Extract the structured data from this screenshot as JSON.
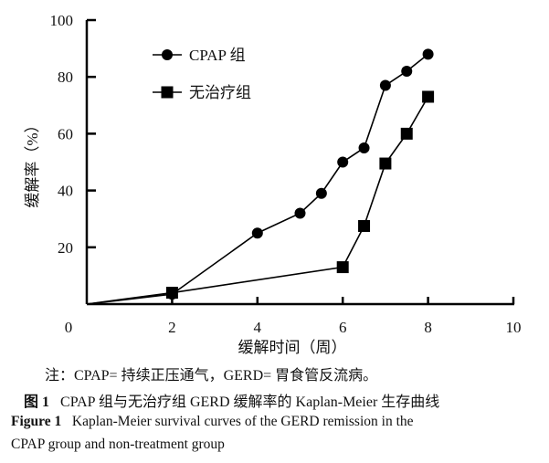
{
  "chart_data": {
    "type": "line",
    "xlabel": "缓解时间（周）",
    "ylabel": "缓解率（%）",
    "xlim": [
      0,
      10
    ],
    "ylim": [
      0,
      100
    ],
    "x_ticks": [
      "0",
      "2",
      "4",
      "6",
      "8",
      "10"
    ],
    "y_ticks": [
      "20",
      "40",
      "60",
      "80",
      "100"
    ],
    "grid": false,
    "legend_position": "top-left",
    "series": [
      {
        "name": "CPAP 组",
        "marker": "circle",
        "color": "#000000",
        "x": [
          0,
          2,
          4,
          5,
          5.5,
          6,
          6.5,
          7,
          7.5,
          8
        ],
        "y": [
          0,
          3.5,
          25,
          32,
          39,
          50,
          55,
          77,
          82,
          88
        ]
      },
      {
        "name": "无治疗组",
        "marker": "square",
        "color": "#000000",
        "x": [
          0,
          2,
          6,
          6.5,
          7,
          7.5,
          8
        ],
        "y": [
          0,
          4,
          13,
          27.5,
          49.5,
          60,
          73
        ]
      }
    ]
  },
  "caption": {
    "note": "注：CPAP= 持续正压通气，GERD= 胃食管反流病。",
    "fig_label_cn": "图 1",
    "title_cn": "CPAP 组与无治疗组 GERD 缓解率的 Kaplan-Meier 生存曲线",
    "fig_label_en": "Figure 1",
    "title_en_line1": "Kaplan-Meier survival curves of the GERD remission in the",
    "title_en_line2": "CPAP group and non-treatment group"
  }
}
